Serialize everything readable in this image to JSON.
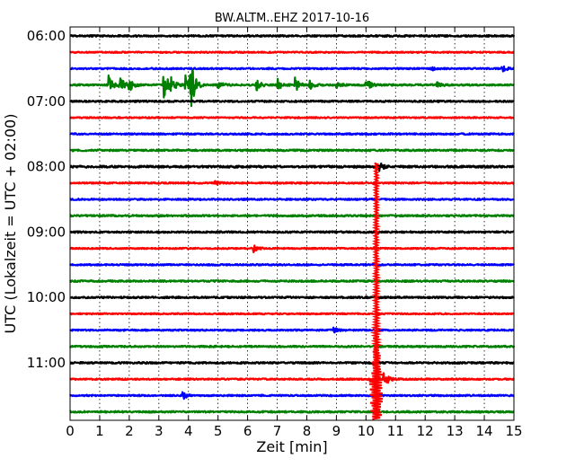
{
  "chart_data": {
    "type": "line",
    "title": "BW.ALTM..EHZ 2017-10-16",
    "xlabel": "Zeit  [min]",
    "ylabel": "UTC (Lokalzeit = UTC + 02:00)",
    "xlim": [
      0,
      15
    ],
    "x_ticks": [
      "0",
      "1",
      "2",
      "3",
      "4",
      "5",
      "6",
      "7",
      "8",
      "9",
      "10",
      "11",
      "12",
      "13",
      "14",
      "15"
    ],
    "y_ticks": [
      "06:00",
      "07:00",
      "08:00",
      "09:00",
      "10:00",
      "11:00"
    ],
    "grid": "vertical dotted",
    "trace_interval_min": 15,
    "traces": [
      {
        "start": "06:00",
        "color": "#000000",
        "amplitude": 0.1,
        "events": []
      },
      {
        "start": "06:15",
        "color": "#ff0000",
        "amplitude": 0.08,
        "events": []
      },
      {
        "start": "06:30",
        "color": "#0000ff",
        "amplitude": 0.09,
        "events": [
          {
            "min": 12.2,
            "amp": 0.25
          },
          {
            "min": 14.6,
            "amp": 0.4
          }
        ]
      },
      {
        "start": "06:45",
        "color": "#008000",
        "amplitude": 0.1,
        "events": [
          {
            "min": 1.3,
            "amp": 1.1
          },
          {
            "min": 1.65,
            "amp": 1.4
          },
          {
            "min": 2.0,
            "amp": 0.8
          },
          {
            "min": 3.15,
            "amp": 2.2
          },
          {
            "min": 3.4,
            "amp": 1.0
          },
          {
            "min": 3.9,
            "amp": 2.0
          },
          {
            "min": 4.05,
            "amp": 3.5
          },
          {
            "min": 5.0,
            "amp": 0.5
          },
          {
            "min": 6.3,
            "amp": 0.7
          },
          {
            "min": 7.0,
            "amp": 0.8
          },
          {
            "min": 7.6,
            "amp": 0.9
          },
          {
            "min": 8.1,
            "amp": 0.6
          },
          {
            "min": 9.0,
            "amp": 0.4
          },
          {
            "min": 10.0,
            "amp": 0.8
          },
          {
            "min": 12.4,
            "amp": 0.4
          }
        ]
      },
      {
        "start": "07:00",
        "color": "#000000",
        "amplitude": 0.1,
        "events": []
      },
      {
        "start": "07:15",
        "color": "#ff0000",
        "amplitude": 0.08,
        "events": []
      },
      {
        "start": "07:30",
        "color": "#0000ff",
        "amplitude": 0.09,
        "events": []
      },
      {
        "start": "07:45",
        "color": "#008000",
        "amplitude": 0.1,
        "events": []
      },
      {
        "start": "08:00",
        "color": "#000000",
        "amplitude": 0.12,
        "events": [
          {
            "min": 10.45,
            "amp": 0.5
          }
        ]
      },
      {
        "start": "08:15",
        "color": "#ff0000",
        "amplitude": 0.08,
        "events": [
          {
            "min": 4.9,
            "amp": 0.3
          }
        ]
      },
      {
        "start": "08:30",
        "color": "#0000ff",
        "amplitude": 0.09,
        "events": []
      },
      {
        "start": "08:45",
        "color": "#008000",
        "amplitude": 0.1,
        "events": []
      },
      {
        "start": "09:00",
        "color": "#000000",
        "amplitude": 0.1,
        "events": []
      },
      {
        "start": "09:15",
        "color": "#ff0000",
        "amplitude": 0.08,
        "events": [
          {
            "min": 6.2,
            "amp": 0.4
          }
        ]
      },
      {
        "start": "09:30",
        "color": "#0000ff",
        "amplitude": 0.09,
        "events": []
      },
      {
        "start": "09:45",
        "color": "#008000",
        "amplitude": 0.1,
        "events": []
      },
      {
        "start": "10:00",
        "color": "#000000",
        "amplitude": 0.1,
        "events": []
      },
      {
        "start": "10:15",
        "color": "#ff0000",
        "amplitude": 0.08,
        "events": []
      },
      {
        "start": "10:30",
        "color": "#0000ff",
        "amplitude": 0.09,
        "events": [
          {
            "min": 8.9,
            "amp": 0.3
          }
        ]
      },
      {
        "start": "10:45",
        "color": "#008000",
        "amplitude": 0.1,
        "events": []
      },
      {
        "start": "11:00",
        "color": "#000000",
        "amplitude": 0.1,
        "events": []
      },
      {
        "start": "11:15",
        "color": "#ff0000",
        "amplitude": 0.09,
        "events": [
          {
            "min": 10.6,
            "amp": 1.5
          }
        ]
      },
      {
        "start": "11:30",
        "color": "#0000ff",
        "amplitude": 0.09,
        "events": [
          {
            "min": 3.8,
            "amp": 0.6
          }
        ]
      },
      {
        "start": "11:45",
        "color": "#008000",
        "amplitude": 0.1,
        "events": []
      }
    ],
    "earthquake": {
      "min": 10.35,
      "color": "#ff0000",
      "start_trace": "08:00",
      "end_trace": "11:45",
      "peak_trace": "11:15"
    }
  }
}
